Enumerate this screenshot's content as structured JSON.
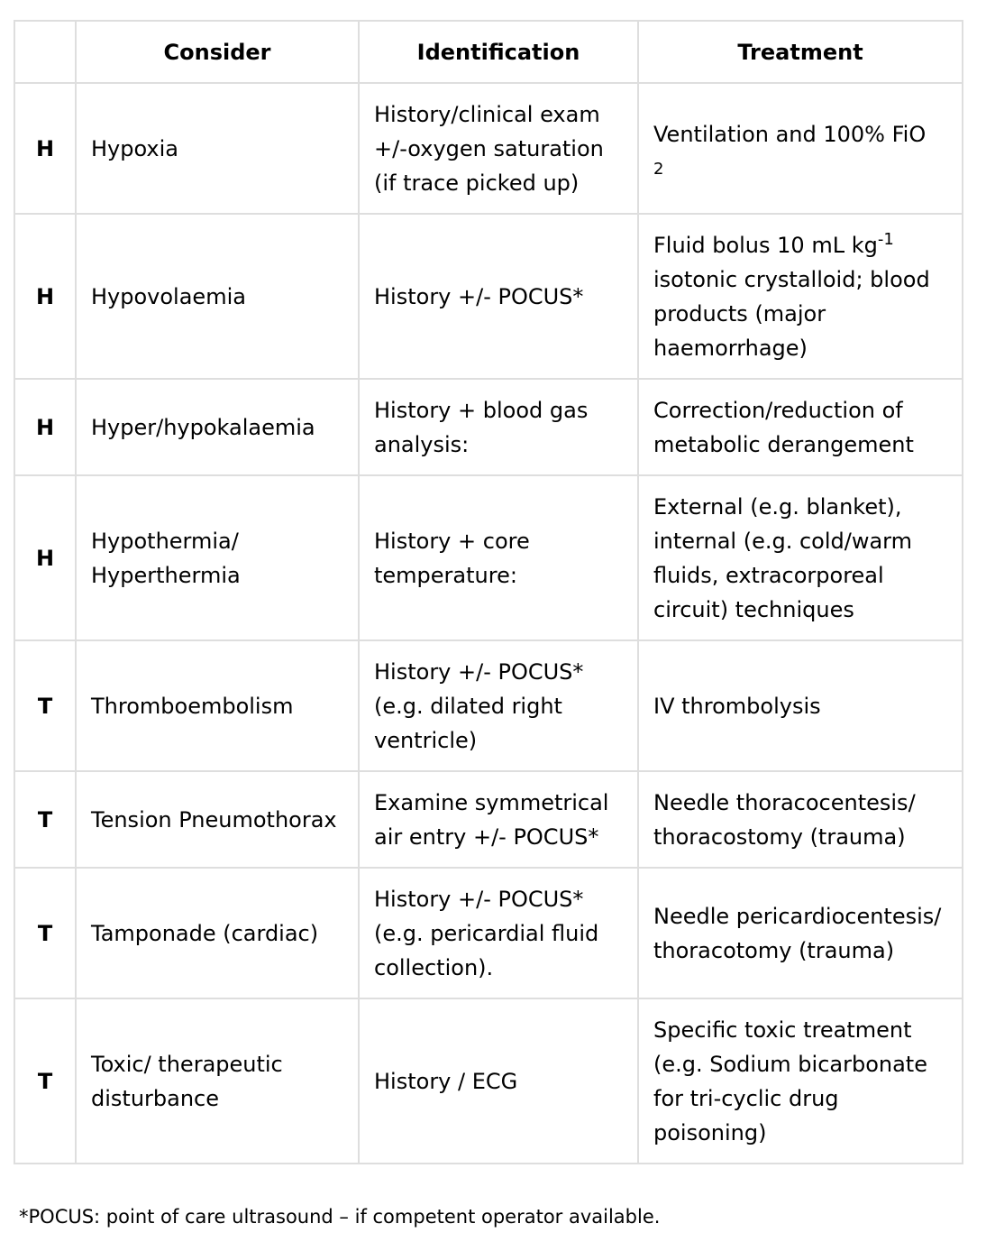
{
  "table": {
    "headers": [
      "",
      "Consider",
      "Identification",
      "Treatment"
    ],
    "rows": [
      {
        "letter": "H",
        "consider": "Hypoxia",
        "identification": "History/clinical exam +/-oxygen saturation (if trace picked up)",
        "treatment": "Ventilation and 100% FiO",
        "treatment_subscript": "2"
      },
      {
        "letter": "H",
        "consider": "Hypovolaemia",
        "identification": "History +/- POCUS*",
        "treatment_prefix": "Fluid bolus 10 mL kg",
        "treatment_superscript": "-1",
        "treatment": "isotonic crystalloid; blood products (major haemorrhage)"
      },
      {
        "letter": "H",
        "consider": "Hyper/hypokalaemia",
        "identification": "History + blood gas analysis:",
        "treatment": "Correction/reduction of metabolic derangement"
      },
      {
        "letter": "H",
        "consider": "Hypothermia/ Hyperthermia",
        "identification": "History + core temperature:",
        "treatment": "External (e.g. blanket), internal (e.g. cold/warm fluids, extracorporeal circuit) techniques"
      },
      {
        "letter": "T",
        "consider": "Thromboembolism",
        "identification": "History +/- POCUS* (e.g. dilated right ventricle)",
        "treatment": "IV thrombolysis"
      },
      {
        "letter": "T",
        "consider": "Tension Pneumothorax",
        "identification": "Examine symmetrical air entry +/- POCUS*",
        "treatment": "Needle thoracocentesis/ thoracostomy (trauma)"
      },
      {
        "letter": "T",
        "consider": "Tamponade (cardiac)",
        "identification": "History +/- POCUS* (e.g. pericardial fluid collection).",
        "treatment": "Needle pericardiocentesis/ thoracotomy (trauma)"
      },
      {
        "letter": "T",
        "consider": "Toxic/ therapeutic disturbance",
        "identification": "History / ECG",
        "treatment": "Specific toxic treatment (e.g. Sodium bicarbonate for tri-cyclic drug poisoning)"
      }
    ]
  },
  "footnote": "*POCUS: point of care ultrasound – if competent operator available."
}
